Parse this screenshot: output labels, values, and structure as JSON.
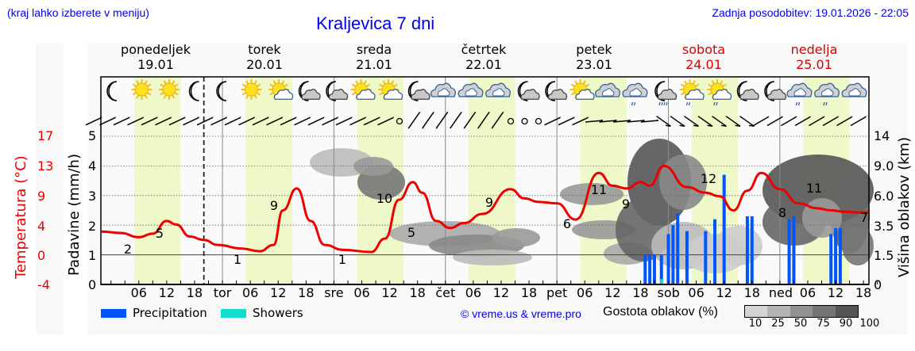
{
  "header": {
    "region_hint": "(kraj lahko izberete v meniju)",
    "title": "Kraljevica 7 dni",
    "last_update": "Zadnja posodobitev: 19.01.2026 - 22:05"
  },
  "days": [
    {
      "name": "ponedeljek",
      "date": "19.01",
      "weekend": false
    },
    {
      "name": "torek",
      "date": "20.01",
      "weekend": false
    },
    {
      "name": "sreda",
      "date": "21.01",
      "weekend": false
    },
    {
      "name": "četrtek",
      "date": "22.01",
      "weekend": false
    },
    {
      "name": "petek",
      "date": "23.01",
      "weekend": false
    },
    {
      "name": "sobota",
      "date": "24.01",
      "weekend": true
    },
    {
      "name": "nedelja",
      "date": "25.01",
      "weekend": true
    }
  ],
  "weather_icons": [
    "moon",
    "sun",
    "sun",
    "moon",
    "moon",
    "sun",
    "sun-cloud",
    "moon-cloud",
    "moon-cloud",
    "sun-cloud",
    "sun-cloud",
    "moon-cloud",
    "cloud",
    "cloud",
    "cloud",
    "moon-cloud",
    "moon-cloud",
    "sun-cloud",
    "cloud",
    "cloud-rain",
    "moon-cloud-rain",
    "sun-cloud-rain",
    "sun-cloud-rain",
    "moon-cloud",
    "moon-cloud",
    "cloud-rain",
    "cloud-rain",
    "cloud"
  ],
  "axes": {
    "temp_label": "Temperatura (°C)",
    "temp_ticks": [
      "17",
      "13",
      "9",
      "4",
      "0",
      "-4"
    ],
    "precip_label": "Padavine (mm/h)",
    "precip_ticks": [
      "5",
      "4",
      "3",
      "2",
      "1",
      "0"
    ],
    "cloud_label": "Višina oblakov (km)",
    "cloud_ticks": [
      "14",
      "9.0",
      "6.0",
      "3.5",
      "1.5",
      "0"
    ],
    "x_ticks": [
      "06",
      "12",
      "18",
      "tor",
      "06",
      "12",
      "18",
      "sre",
      "06",
      "12",
      "18",
      "čet",
      "06",
      "12",
      "18",
      "pet",
      "06",
      "12",
      "18",
      "sob",
      "06",
      "12",
      "18",
      "ned",
      "06",
      "12",
      "18"
    ]
  },
  "legend": {
    "precipitation": "Precipitation",
    "showers": "Showers",
    "precipitation_color": "#0055ff",
    "showers_color": "#11ddcc",
    "copyright": "© vreme.us & vreme.pro",
    "cloud_density_label": "Gostota oblakov (%)",
    "cloud_density_ticks": [
      "10",
      "25",
      "50",
      "75",
      "90",
      "100"
    ]
  },
  "chart_data": {
    "type": "line",
    "title": "Kraljevica 7 dni",
    "xlabel": "",
    "ylabel": "Temperatura (°C) / Padavine (mm/h)",
    "y2label": "Višina oblakov (km)",
    "x_range_hours": [
      0,
      165
    ],
    "temp_ylim": [
      -4,
      17
    ],
    "precip_ylim": [
      0,
      5
    ],
    "grid": true,
    "series": [
      {
        "name": "Temperatura (°C)",
        "color": "#ee0000",
        "x_hours": [
          0,
          4,
          8,
          11,
          14,
          16,
          19,
          22,
          25,
          30,
          34,
          37,
          39,
          42,
          45,
          48,
          52,
          58,
          61,
          64,
          67,
          69,
          72,
          75,
          78,
          82,
          88,
          91,
          94,
          98,
          102,
          107,
          110,
          113,
          116,
          118,
          121,
          126,
          130,
          133,
          136,
          139,
          142,
          146,
          150,
          154,
          157,
          160,
          163,
          165
        ],
        "values": [
          3.5,
          3.3,
          2.7,
          3.2,
          5.0,
          4.5,
          2.8,
          2.3,
          1.6,
          1.1,
          0.7,
          1.6,
          6.5,
          9.6,
          5.0,
          1.6,
          0.9,
          0.6,
          2.5,
          8.0,
          10.5,
          9.0,
          5.0,
          4.0,
          4.7,
          6.0,
          9.5,
          8.2,
          7.7,
          7.5,
          5.2,
          11.8,
          10.0,
          9.6,
          10.5,
          10.0,
          12.8,
          9.8,
          9.0,
          8.5,
          6.5,
          9.3,
          11.8,
          9.5,
          7.5,
          6.8,
          6.5,
          6.3,
          6.2,
          6.2
        ]
      }
    ],
    "temp_labels": [
      {
        "x_hours": 8,
        "value": 2
      },
      {
        "x_hours": 15,
        "value": 5
      },
      {
        "x_hours": 32,
        "value": 1
      },
      {
        "x_hours": 40,
        "value": 9
      },
      {
        "x_hours": 56,
        "value": 1
      },
      {
        "x_hours": 64,
        "value": 10
      },
      {
        "x_hours": 70,
        "value": 5
      },
      {
        "x_hours": 86,
        "value": 9
      },
      {
        "x_hours": 102,
        "value": 6
      },
      {
        "x_hours": 108,
        "value": 11
      },
      {
        "x_hours": 114,
        "value": 9
      },
      {
        "x_hours": 131,
        "value": 12
      },
      {
        "x_hours": 148,
        "value": 8
      },
      {
        "x_hours": 155,
        "value": 11
      },
      {
        "x_hours": 165,
        "value": 7
      }
    ],
    "precipitation_bars": {
      "unit": "mm/h",
      "x_hours": [
        117,
        118,
        119,
        120.5,
        122,
        123,
        124,
        126,
        130,
        132,
        134,
        139,
        140,
        148,
        149,
        157,
        158,
        159
      ],
      "values": [
        1.0,
        1.0,
        1.0,
        1.0,
        1.7,
        2.0,
        2.4,
        1.8,
        1.8,
        2.2,
        3.7,
        2.3,
        2.3,
        2.2,
        2.3,
        1.7,
        1.9,
        1.9
      ]
    },
    "showers_bars": {
      "x_hours": [
        120.5
      ],
      "values": [
        0.1
      ]
    },
    "daylight_bands_hours": [
      [
        7,
        17
      ],
      [
        31,
        41
      ],
      [
        55,
        65
      ],
      [
        79,
        89
      ],
      [
        103,
        113
      ],
      [
        127,
        137
      ],
      [
        151,
        161
      ]
    ],
    "now_marker_hours": 22
  }
}
